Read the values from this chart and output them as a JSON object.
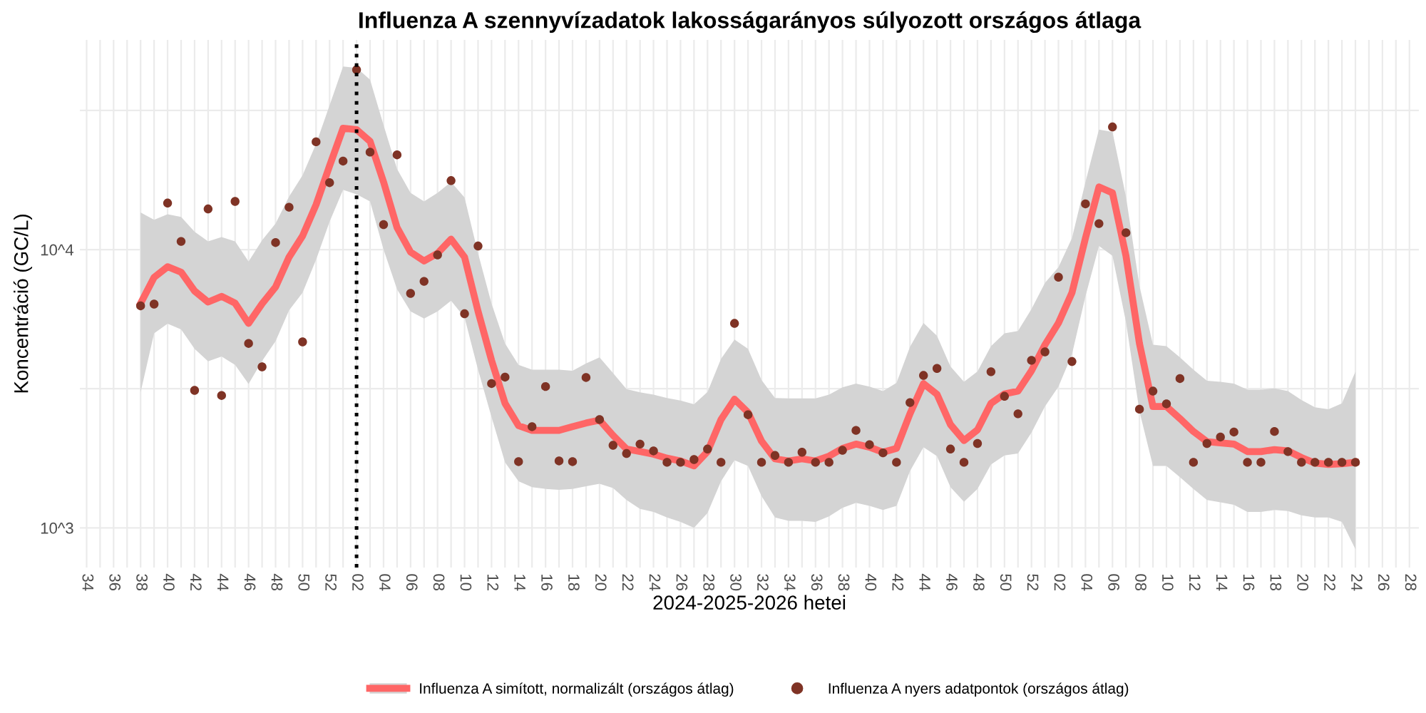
{
  "chart_data": {
    "type": "line",
    "title": "Influenza A szennyvízadatok lakosságarányos súlyozott országos átlaga",
    "xlabel": "2024-2025-2026 hetei",
    "ylabel": "Koncentráció (GC/L)",
    "log": "y",
    "grid": true,
    "legend": "bottom",
    "ylim": [
      720,
      56700
    ],
    "yticks": [
      {
        "value": 1000,
        "label": "10^3"
      },
      {
        "value": 3162,
        "label": null
      },
      {
        "value": 10000,
        "label": "10^4"
      },
      {
        "value": 31623,
        "label": null
      }
    ],
    "categories": [
      "34",
      null,
      "36",
      null,
      "38",
      null,
      "40",
      null,
      "42",
      null,
      "44",
      null,
      "46",
      null,
      "48",
      null,
      "50",
      null,
      "52",
      null,
      "02",
      null,
      "04",
      null,
      "06",
      null,
      "08",
      null,
      "10",
      null,
      "12",
      null,
      "14",
      null,
      "16",
      null,
      "18",
      null,
      "20",
      null,
      "22",
      null,
      "24",
      null,
      "26",
      null,
      "28",
      null,
      "30",
      null,
      "32",
      null,
      "34",
      null,
      "36",
      null,
      "38",
      null,
      "40",
      null,
      "42",
      null,
      "44",
      null,
      "46",
      null,
      "48",
      null,
      "50",
      null,
      "52",
      null,
      "02",
      null,
      "04",
      null,
      "06",
      null,
      "08",
      null,
      "10",
      null,
      "12",
      null,
      "14",
      null,
      "16",
      null,
      "18",
      null,
      "20",
      null,
      "22",
      null,
      "24",
      null,
      "26",
      null,
      "28"
    ],
    "ref_lines": [
      {
        "axis": "x",
        "value": "02",
        "color": "#000000",
        "line_style": "dotted"
      }
    ],
    "series": [
      {
        "name": "Influenza A simított, normalizált (országos átlag)",
        "color": "#ff6666",
        "values": [
          null,
          null,
          null,
          null,
          6410,
          7950,
          8680,
          8300,
          7100,
          6480,
          6790,
          6420,
          5430,
          6390,
          7340,
          9400,
          11200,
          14500,
          20000,
          27300,
          27000,
          24500,
          17500,
          12000,
          9800,
          9100,
          9700,
          10900,
          9400,
          6000,
          4000,
          2800,
          2330,
          2240,
          2240,
          2240,
          2310,
          2380,
          2440,
          2150,
          1920,
          1880,
          1840,
          1780,
          1740,
          1670,
          1880,
          2450,
          2900,
          2600,
          2050,
          1770,
          1740,
          1770,
          1740,
          1810,
          1930,
          2000,
          1950,
          1870,
          1930,
          2570,
          3300,
          3020,
          2350,
          2060,
          2250,
          2800,
          3030,
          3100,
          3670,
          4550,
          5450,
          7000,
          11000,
          16800,
          16000,
          9500,
          4600,
          2730,
          2730,
          2470,
          2220,
          2040,
          2020,
          2000,
          1880,
          1880,
          1910,
          1890,
          1790,
          1710,
          1690,
          1700,
          1720,
          null,
          null,
          null,
          null
        ],
        "upper": [
          null,
          null,
          null,
          null,
          13600,
          12800,
          13400,
          13100,
          11600,
          10700,
          11100,
          10700,
          9060,
          10800,
          12400,
          15500,
          18500,
          24000,
          33000,
          45500,
          45000,
          40800,
          28000,
          19500,
          16000,
          14900,
          16000,
          17500,
          15400,
          9700,
          6400,
          4600,
          3850,
          3700,
          3700,
          3700,
          3670,
          3900,
          4100,
          3600,
          3150,
          3070,
          3010,
          2930,
          2870,
          2780,
          3080,
          4050,
          4750,
          4400,
          3400,
          2930,
          2920,
          2920,
          2920,
          3010,
          3200,
          3300,
          3220,
          3100,
          3320,
          4470,
          5450,
          4900,
          3800,
          3350,
          3650,
          4500,
          5000,
          5100,
          6110,
          7590,
          8650,
          11000,
          17500,
          27000,
          26500,
          15500,
          7400,
          4550,
          4500,
          4100,
          3700,
          3380,
          3350,
          3300,
          3140,
          3140,
          3170,
          3100,
          2880,
          2710,
          2670,
          2800,
          3640,
          null,
          null,
          null,
          null
        ],
        "lower": [
          null,
          null,
          null,
          null,
          3070,
          5000,
          5420,
          5170,
          4400,
          3970,
          4130,
          3850,
          3290,
          3980,
          4690,
          6050,
          7000,
          9200,
          12600,
          16400,
          15800,
          14900,
          10000,
          7200,
          6000,
          5650,
          6000,
          6550,
          5700,
          3700,
          2500,
          1720,
          1470,
          1400,
          1380,
          1370,
          1380,
          1410,
          1440,
          1390,
          1260,
          1170,
          1140,
          1090,
          1050,
          1000,
          1130,
          1470,
          1750,
          1670,
          1300,
          1090,
          1060,
          1060,
          1050,
          1100,
          1180,
          1230,
          1200,
          1160,
          1200,
          1600,
          1950,
          1810,
          1400,
          1240,
          1380,
          1690,
          1820,
          1850,
          2200,
          2730,
          3220,
          4200,
          6800,
          10300,
          9500,
          5500,
          2620,
          1670,
          1670,
          1520,
          1380,
          1260,
          1235,
          1210,
          1140,
          1140,
          1160,
          1150,
          1110,
          1090,
          1090,
          1050,
          838,
          null,
          null,
          null,
          null
        ]
      },
      {
        "name": "Influenza A nyers adatpontok (országos átlag)",
        "type": "scatter",
        "color": "#7f3325",
        "marker": "circle",
        "values": [
          null,
          null,
          null,
          null,
          6280,
          6370,
          14700,
          10700,
          3120,
          14000,
          2990,
          14900,
          4600,
          3790,
          10600,
          14200,
          4660,
          24400,
          17400,
          20800,
          44300,
          22400,
          12300,
          21900,
          6960,
          7690,
          9570,
          17700,
          5880,
          10300,
          3300,
          3480,
          1730,
          2310,
          3220,
          1740,
          1730,
          3470,
          2450,
          1980,
          1850,
          2000,
          1890,
          1720,
          1720,
          1760,
          1920,
          1720,
          5430,
          2550,
          1720,
          1820,
          1720,
          1870,
          1720,
          1720,
          1900,
          2240,
          1990,
          1860,
          1720,
          2820,
          3530,
          3740,
          1920,
          1720,
          2010,
          3640,
          2970,
          2570,
          4000,
          4290,
          7960,
          3960,
          14600,
          12400,
          27600,
          11500,
          2670,
          3100,
          2790,
          3440,
          1720,
          2010,
          2120,
          2210,
          1720,
          1720,
          2220,
          1880,
          1720,
          1720,
          1720,
          1720,
          1720,
          null,
          null,
          null,
          null
        ]
      }
    ]
  }
}
